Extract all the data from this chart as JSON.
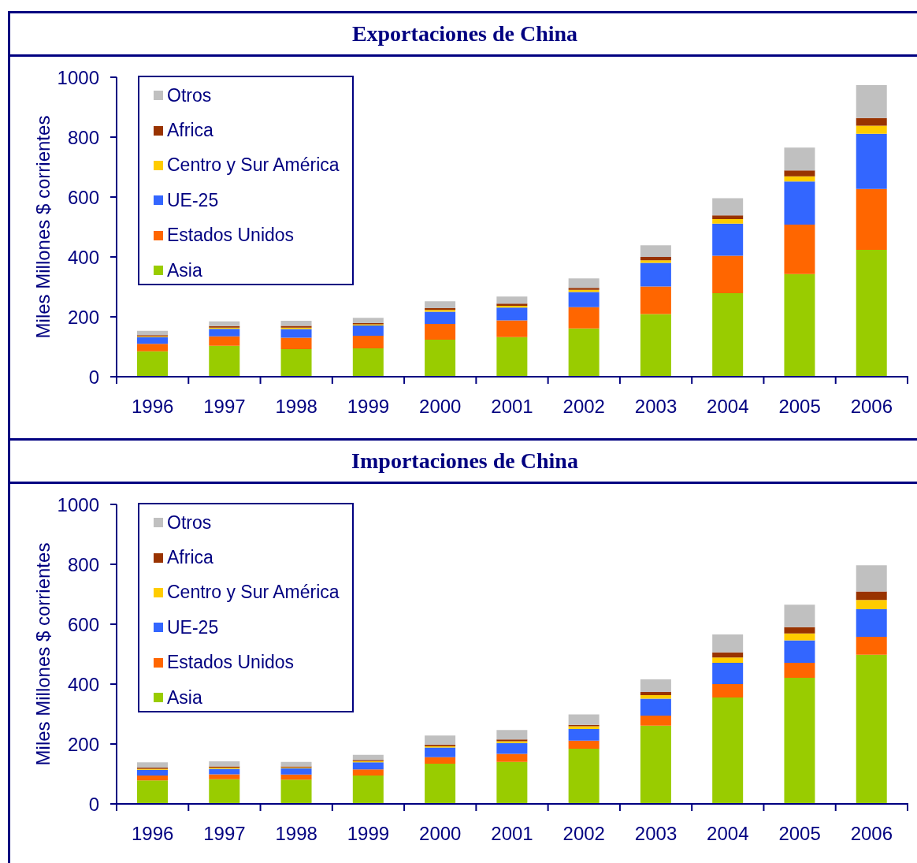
{
  "chart_data": [
    {
      "type": "bar",
      "title": "Exportaciones de China",
      "ylabel": "Miles Millones $ corrientes",
      "categories": [
        "1996",
        "1997",
        "1998",
        "1999",
        "2000",
        "2001",
        "2002",
        "2003",
        "2004",
        "2005",
        "2006"
      ],
      "stacked": true,
      "ylim": [
        0,
        1000
      ],
      "yticks": [
        0,
        200,
        400,
        600,
        800,
        1000
      ],
      "legend": "top left",
      "series": [
        {
          "name": "Asia",
          "color": "#99cc00",
          "values": [
            85,
            103,
            92,
            95,
            124,
            132,
            161,
            209,
            279,
            343,
            424
          ]
        },
        {
          "name": "Estados Unidos",
          "color": "#ff6600",
          "values": [
            25,
            32,
            38,
            42,
            52,
            56,
            71,
            92,
            125,
            165,
            203
          ]
        },
        {
          "name": "UE-25",
          "color": "#3366ff",
          "values": [
            22,
            25,
            29,
            34,
            41,
            43,
            51,
            79,
            107,
            144,
            184
          ]
        },
        {
          "name": "Centro y Sur América",
          "color": "#ffcc00",
          "values": [
            3,
            4,
            5,
            4,
            6,
            6,
            7,
            9,
            15,
            17,
            27
          ]
        },
        {
          "name": "Africa",
          "color": "#993300",
          "values": [
            4,
            5,
            6,
            4,
            6,
            7,
            7,
            11,
            13,
            20,
            26
          ]
        },
        {
          "name": "Otros",
          "color": "#c0c0c0",
          "values": [
            14,
            16,
            17,
            18,
            23,
            24,
            31,
            39,
            57,
            76,
            110
          ]
        }
      ]
    },
    {
      "type": "bar",
      "title": "Importaciones de China",
      "ylabel": "Miles Millones $ corrientes",
      "categories": [
        "1996",
        "1997",
        "1998",
        "1999",
        "2000",
        "2001",
        "2002",
        "2003",
        "2004",
        "2005",
        "2006"
      ],
      "stacked": true,
      "ylim": [
        0,
        1000
      ],
      "yticks": [
        0,
        200,
        400,
        600,
        800,
        1000
      ],
      "legend": "top left",
      "series": [
        {
          "name": "Asia",
          "color": "#99cc00",
          "values": [
            78,
            82,
            81,
            95,
            134,
            140,
            184,
            261,
            355,
            421,
            498
          ]
        },
        {
          "name": "Estados Unidos",
          "color": "#ff6600",
          "values": [
            17,
            17,
            17,
            20,
            22,
            27,
            27,
            34,
            45,
            50,
            60
          ]
        },
        {
          "name": "UE-25",
          "color": "#3366ff",
          "values": [
            19,
            18,
            21,
            24,
            32,
            36,
            39,
            56,
            71,
            75,
            92
          ]
        },
        {
          "name": "Centro y Sur América",
          "color": "#ffcc00",
          "values": [
            3,
            4,
            3,
            4,
            5,
            6,
            9,
            12,
            18,
            23,
            31
          ]
        },
        {
          "name": "Africa",
          "color": "#993300",
          "values": [
            4,
            4,
            3,
            4,
            5,
            6,
            5,
            11,
            17,
            21,
            28
          ]
        },
        {
          "name": "Otros",
          "color": "#c0c0c0",
          "values": [
            18,
            17,
            15,
            17,
            30,
            32,
            35,
            42,
            60,
            75,
            88
          ]
        }
      ]
    }
  ]
}
